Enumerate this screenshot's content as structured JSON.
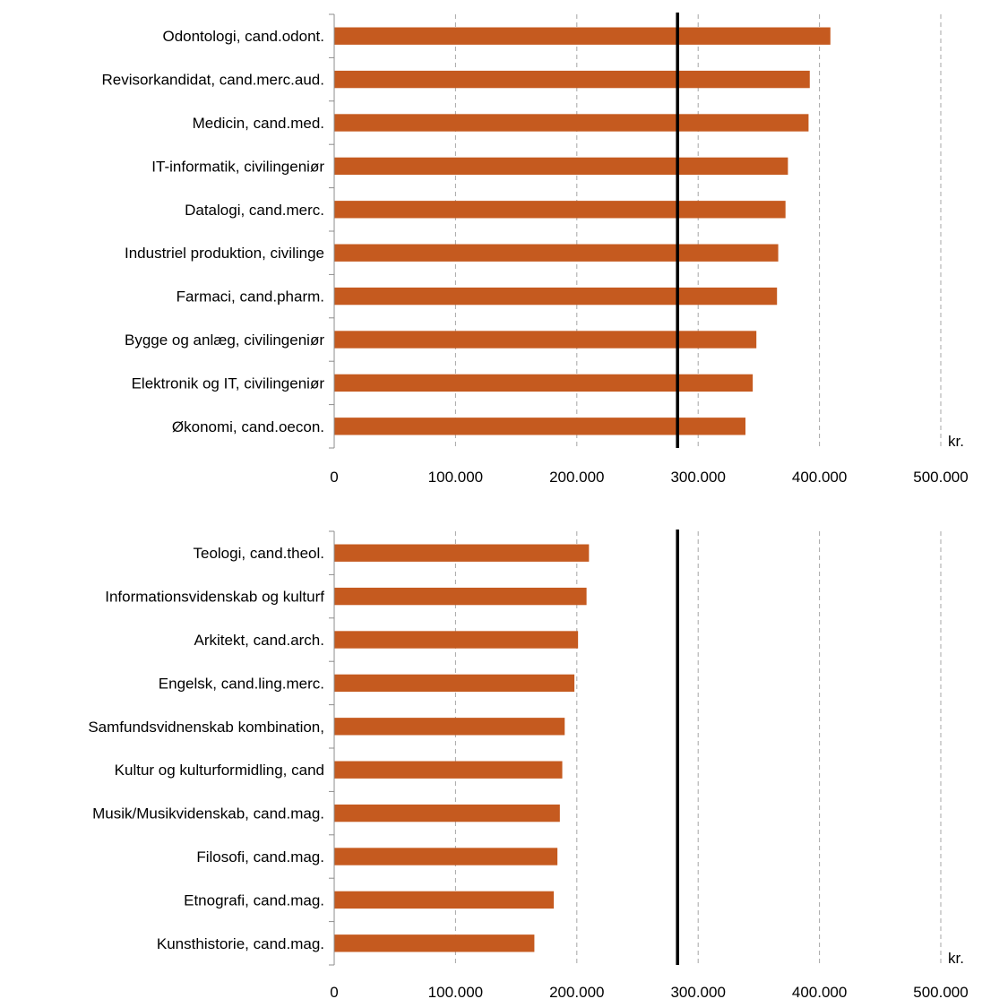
{
  "chart_data": [
    {
      "type": "bar",
      "orientation": "horizontal",
      "categories": [
        "Odontologi, cand.odont.",
        "Revisorkandidat, cand.merc.aud.",
        "Medicin, cand.med.",
        "IT-informatik, civilingeniør",
        "Datalogi, cand.merc.",
        "Industriel produktion, civilinge",
        "Farmaci, cand.pharm.",
        "Bygge og anlæg, civilingeniør",
        "Elektronik og IT, civilingeniør",
        "Økonomi, cand.oecon."
      ],
      "values": [
        409000,
        392000,
        391000,
        374000,
        372000,
        366000,
        365000,
        348000,
        345000,
        339000
      ],
      "reference_line": 283000,
      "xlim": [
        0,
        500000
      ],
      "xticks": [
        "0",
        "100.000",
        "200.000",
        "300.000",
        "400.000",
        "500.000"
      ],
      "xunit": "kr.",
      "grid": "vertical dashed",
      "bar_color": "#C55A1F"
    },
    {
      "type": "bar",
      "orientation": "horizontal",
      "categories": [
        "Teologi, cand.theol.",
        "Informationsvidenskab og kulturf",
        "Arkitekt, cand.arch.",
        "Engelsk, cand.ling.merc.",
        "Samfundsvidnenskab kombination,",
        "Kultur og kulturformidling, cand",
        "Musik/Musikvidenskab, cand.mag.",
        "Filosofi, cand.mag.",
        "Etnografi, cand.mag.",
        "Kunsthistorie, cand.mag."
      ],
      "values": [
        210000,
        208000,
        201000,
        198000,
        190000,
        188000,
        186000,
        184000,
        181000,
        165000
      ],
      "reference_line": 283000,
      "xlim": [
        0,
        500000
      ],
      "xticks": [
        "0",
        "100.000",
        "200.000",
        "300.000",
        "400.000",
        "500.000"
      ],
      "xunit": "kr.",
      "grid": "vertical dashed",
      "bar_color": "#C55A1F"
    }
  ]
}
